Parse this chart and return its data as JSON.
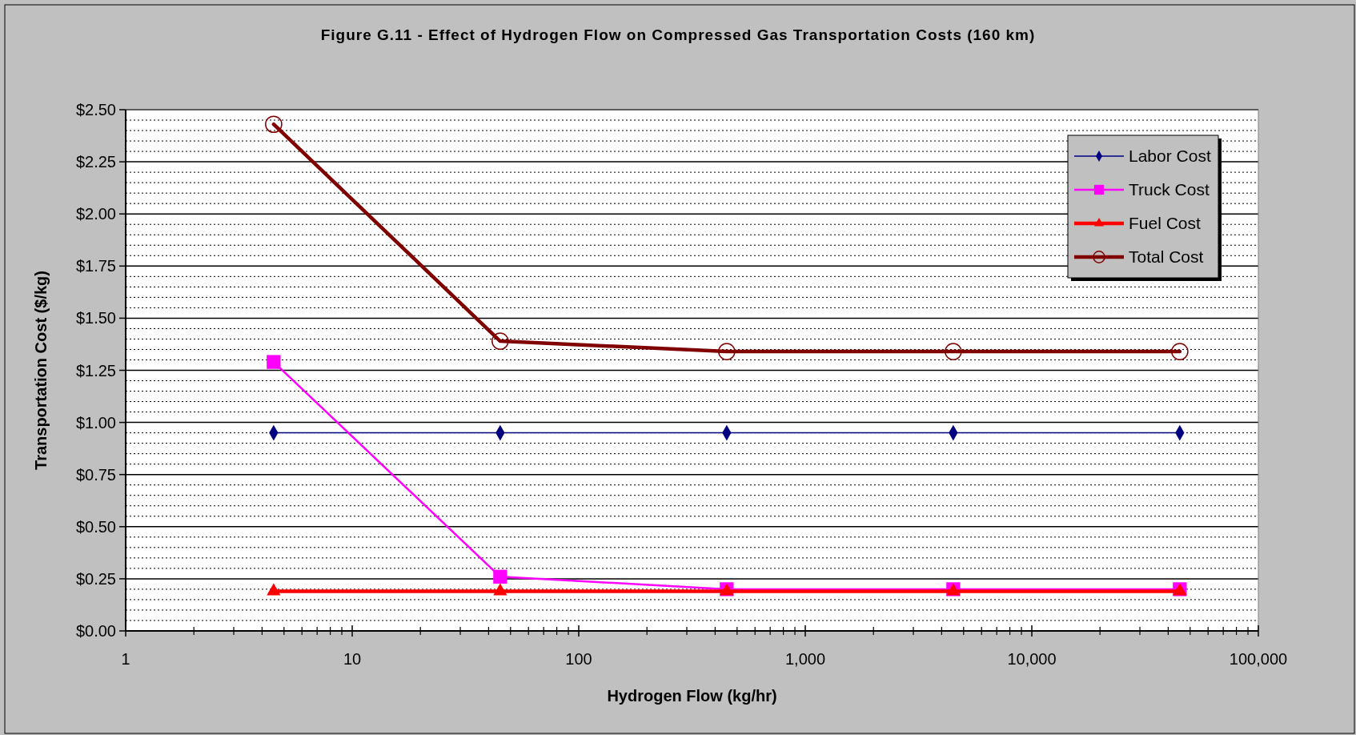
{
  "chart_data": {
    "type": "line",
    "title": "Figure G.11 - Effect of Hydrogen Flow on Compressed Gas Transportation Costs (160 km)",
    "xlabel": "Hydrogen Flow (kg/hr)",
    "ylabel": "Transportation Cost ($/kg)",
    "x": [
      4.5,
      45,
      450,
      4500,
      45000
    ],
    "series": [
      {
        "name": "Labor Cost",
        "color": "#000080",
        "marker": "diamond",
        "values": [
          0.95,
          0.95,
          0.95,
          0.95,
          0.95
        ]
      },
      {
        "name": "Truck Cost",
        "color": "#ff00ff",
        "marker": "square",
        "values": [
          1.29,
          0.26,
          0.2,
          0.2,
          0.2
        ]
      },
      {
        "name": "Fuel Cost",
        "color": "#ff0000",
        "marker": "triangle",
        "values": [
          0.19,
          0.19,
          0.19,
          0.19,
          0.19
        ]
      },
      {
        "name": "Total Cost",
        "color": "#800000",
        "marker": "circle",
        "values": [
          2.43,
          1.39,
          1.34,
          1.34,
          1.34
        ]
      }
    ],
    "log": "x",
    "xlim": [
      1,
      100000
    ],
    "xticks": [
      {
        "value": 1,
        "label": "1"
      },
      {
        "value": 10,
        "label": "10"
      },
      {
        "value": 100,
        "label": "100"
      },
      {
        "value": 1000,
        "label": "1,000"
      },
      {
        "value": 10000,
        "label": "10,000"
      },
      {
        "value": 100000,
        "label": "100,000"
      }
    ],
    "ylim": [
      0,
      2.5
    ],
    "yticks": [
      {
        "value": 0,
        "label": "$0.00"
      },
      {
        "value": 0.25,
        "label": "$0.25"
      },
      {
        "value": 0.5,
        "label": "$0.50"
      },
      {
        "value": 0.75,
        "label": "$0.75"
      },
      {
        "value": 1,
        "label": "$1.00"
      },
      {
        "value": 1.25,
        "label": "$1.25"
      },
      {
        "value": 1.5,
        "label": "$1.50"
      },
      {
        "value": 1.75,
        "label": "$1.75"
      },
      {
        "value": 2,
        "label": "$2.00"
      },
      {
        "value": 2.25,
        "label": "$2.25"
      },
      {
        "value": 2.5,
        "label": "$2.50"
      }
    ],
    "grid": "y",
    "legend": "top right",
    "line_style": "solid"
  }
}
